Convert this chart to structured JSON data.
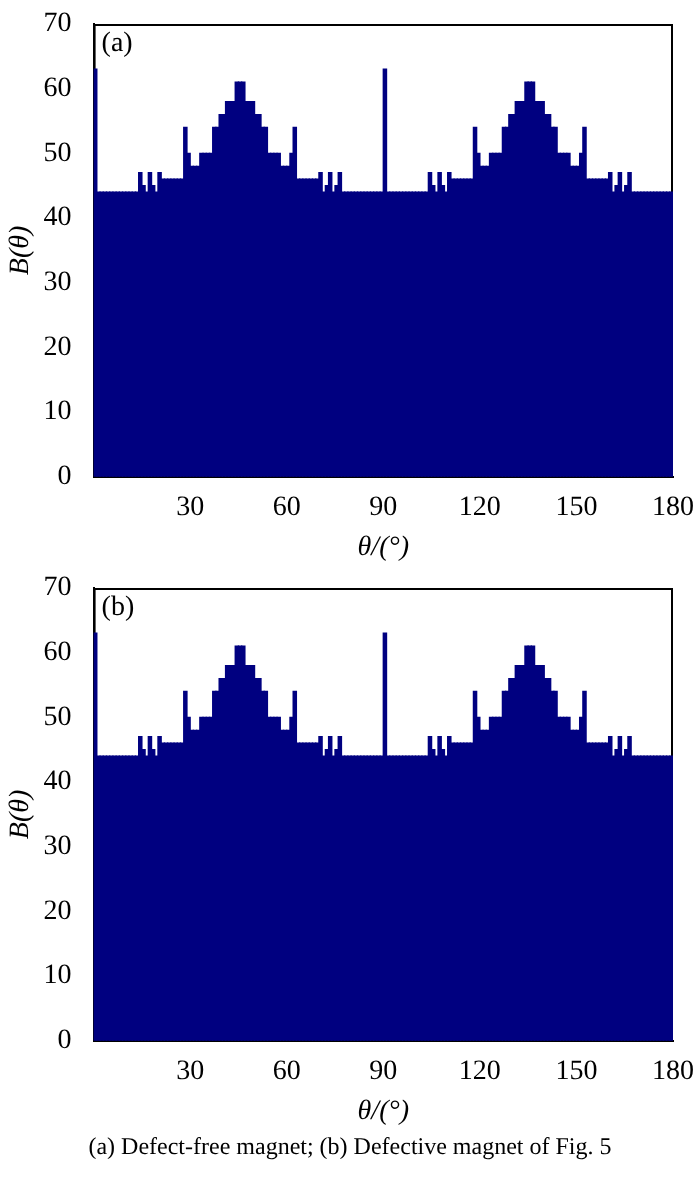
{
  "chart_data": [
    {
      "type": "histogram",
      "xlabel": "θ/(°)",
      "ylabel": "B(θ)",
      "annotations": [
        "(a)"
      ],
      "color": "#000080",
      "bins": [
        0,
        1,
        2,
        3,
        4,
        5,
        6,
        7,
        8,
        9,
        10,
        11,
        12,
        13,
        14,
        15,
        16,
        17,
        18,
        19,
        20,
        21,
        22,
        23,
        24,
        25,
        26,
        27,
        28,
        29,
        30,
        31,
        32,
        33,
        34,
        35,
        36,
        37,
        38,
        39,
        40,
        41,
        42,
        43,
        44,
        45,
        46,
        47,
        48,
        49,
        50,
        51,
        52,
        53,
        54,
        55,
        56,
        57,
        58,
        59,
        60,
        61,
        62,
        63,
        64,
        65,
        66,
        67,
        68,
        69,
        70,
        71,
        72,
        73,
        74,
        75,
        76,
        77,
        78,
        79,
        80,
        81,
        82,
        83,
        84,
        85,
        86,
        87,
        88,
        89,
        90,
        91,
        92,
        93,
        94,
        95,
        96,
        97,
        98,
        99,
        100,
        101,
        102,
        103,
        104,
        105,
        106,
        107,
        108,
        109,
        110,
        111,
        112,
        113,
        114,
        115,
        116,
        117,
        118,
        119,
        120,
        121,
        122,
        123,
        124,
        125,
        126,
        127,
        128,
        129,
        130,
        131,
        132,
        133,
        134,
        135,
        136,
        137,
        138,
        139,
        140,
        141,
        142,
        143,
        144,
        145,
        146,
        147,
        148,
        149,
        150,
        151,
        152,
        153,
        154,
        155,
        156,
        157,
        158,
        159,
        160,
        161,
        162,
        163,
        164,
        165,
        166,
        167,
        168,
        169,
        170,
        171,
        172,
        173,
        174,
        175,
        176,
        177,
        178,
        179,
        180
      ],
      "values": [
        63,
        44,
        44,
        44,
        44,
        44,
        44,
        44,
        44,
        44,
        44,
        44,
        44,
        44,
        47,
        45,
        44,
        47,
        45,
        44,
        47,
        46,
        46,
        46,
        46,
        46,
        46,
        46,
        54,
        50,
        48,
        48,
        48,
        50,
        50,
        50,
        50,
        54,
        54,
        56,
        56,
        58,
        58,
        58,
        61,
        61,
        61,
        58,
        58,
        58,
        56,
        56,
        54,
        54,
        50,
        50,
        50,
        50,
        48,
        48,
        48,
        50,
        54,
        46,
        46,
        46,
        46,
        46,
        46,
        46,
        47,
        44,
        45,
        47,
        44,
        45,
        47,
        44,
        44,
        44,
        44,
        44,
        44,
        44,
        44,
        44,
        44,
        44,
        44,
        44,
        63,
        44,
        44,
        44,
        44,
        44,
        44,
        44,
        44,
        44,
        44,
        44,
        44,
        44,
        47,
        45,
        44,
        47,
        45,
        44,
        47,
        46,
        46,
        46,
        46,
        46,
        46,
        46,
        54,
        50,
        48,
        48,
        48,
        50,
        50,
        50,
        50,
        54,
        54,
        56,
        56,
        58,
        58,
        58,
        61,
        61,
        61,
        58,
        58,
        58,
        56,
        56,
        54,
        54,
        50,
        50,
        50,
        50,
        48,
        48,
        48,
        50,
        54,
        46,
        46,
        46,
        46,
        46,
        46,
        46,
        47,
        44,
        45,
        47,
        44,
        45,
        47,
        44,
        44,
        44,
        44,
        44,
        44,
        44,
        44,
        44,
        44,
        44,
        44,
        44
      ],
      "xlim": [
        0,
        180
      ],
      "xticks": [
        30,
        60,
        90,
        120,
        150,
        180
      ],
      "ylim": [
        0,
        70
      ],
      "yticks": [
        0,
        10,
        20,
        30,
        40,
        50,
        60,
        70
      ],
      "grid": false,
      "legend": false
    },
    {
      "type": "histogram",
      "xlabel": "θ/(°)",
      "ylabel": "B(θ)",
      "annotations": [
        "(b)",
        "(a)  Defect-free  magnet; (b) Defective magnet of Fig. 5"
      ],
      "color": "#000080",
      "bins": [
        0,
        1,
        2,
        3,
        4,
        5,
        6,
        7,
        8,
        9,
        10,
        11,
        12,
        13,
        14,
        15,
        16,
        17,
        18,
        19,
        20,
        21,
        22,
        23,
        24,
        25,
        26,
        27,
        28,
        29,
        30,
        31,
        32,
        33,
        34,
        35,
        36,
        37,
        38,
        39,
        40,
        41,
        42,
        43,
        44,
        45,
        46,
        47,
        48,
        49,
        50,
        51,
        52,
        53,
        54,
        55,
        56,
        57,
        58,
        59,
        60,
        61,
        62,
        63,
        64,
        65,
        66,
        67,
        68,
        69,
        70,
        71,
        72,
        73,
        74,
        75,
        76,
        77,
        78,
        79,
        80,
        81,
        82,
        83,
        84,
        85,
        86,
        87,
        88,
        89,
        90,
        91,
        92,
        93,
        94,
        95,
        96,
        97,
        98,
        99,
        100,
        101,
        102,
        103,
        104,
        105,
        106,
        107,
        108,
        109,
        110,
        111,
        112,
        113,
        114,
        115,
        116,
        117,
        118,
        119,
        120,
        121,
        122,
        123,
        124,
        125,
        126,
        127,
        128,
        129,
        130,
        131,
        132,
        133,
        134,
        135,
        136,
        137,
        138,
        139,
        140,
        141,
        142,
        143,
        144,
        145,
        146,
        147,
        148,
        149,
        150,
        151,
        152,
        153,
        154,
        155,
        156,
        157,
        158,
        159,
        160,
        161,
        162,
        163,
        164,
        165,
        166,
        167,
        168,
        169,
        170,
        171,
        172,
        173,
        174,
        175,
        176,
        177,
        178,
        179,
        180
      ],
      "values": [
        63,
        44,
        44,
        44,
        44,
        44,
        44,
        44,
        44,
        44,
        44,
        44,
        44,
        44,
        47,
        45,
        44,
        47,
        45,
        44,
        47,
        46,
        46,
        46,
        46,
        46,
        46,
        46,
        54,
        50,
        48,
        48,
        48,
        50,
        50,
        50,
        50,
        54,
        54,
        56,
        56,
        58,
        58,
        58,
        61,
        61,
        61,
        58,
        58,
        58,
        56,
        56,
        54,
        54,
        50,
        50,
        50,
        50,
        48,
        48,
        48,
        50,
        54,
        46,
        46,
        46,
        46,
        46,
        46,
        46,
        47,
        44,
        45,
        47,
        44,
        45,
        47,
        44,
        44,
        44,
        44,
        44,
        44,
        44,
        44,
        44,
        44,
        44,
        44,
        44,
        63,
        44,
        44,
        44,
        44,
        44,
        44,
        44,
        44,
        44,
        44,
        44,
        44,
        44,
        47,
        45,
        44,
        47,
        45,
        44,
        47,
        46,
        46,
        46,
        46,
        46,
        46,
        46,
        54,
        50,
        48,
        48,
        48,
        50,
        50,
        50,
        50,
        54,
        54,
        56,
        56,
        58,
        58,
        58,
        61,
        61,
        61,
        58,
        58,
        58,
        56,
        56,
        54,
        54,
        50,
        50,
        50,
        50,
        48,
        48,
        48,
        50,
        54,
        46,
        46,
        46,
        46,
        46,
        46,
        46,
        47,
        44,
        45,
        47,
        44,
        45,
        47,
        44,
        44,
        44,
        44,
        44,
        44,
        44,
        44,
        44,
        44,
        44,
        44,
        44
      ],
      "xlim": [
        0,
        180
      ],
      "xticks": [
        30,
        60,
        90,
        120,
        150,
        180
      ],
      "ylim": [
        0,
        70
      ],
      "yticks": [
        0,
        10,
        20,
        30,
        40,
        50,
        60,
        70
      ],
      "grid": false,
      "legend": false
    }
  ]
}
